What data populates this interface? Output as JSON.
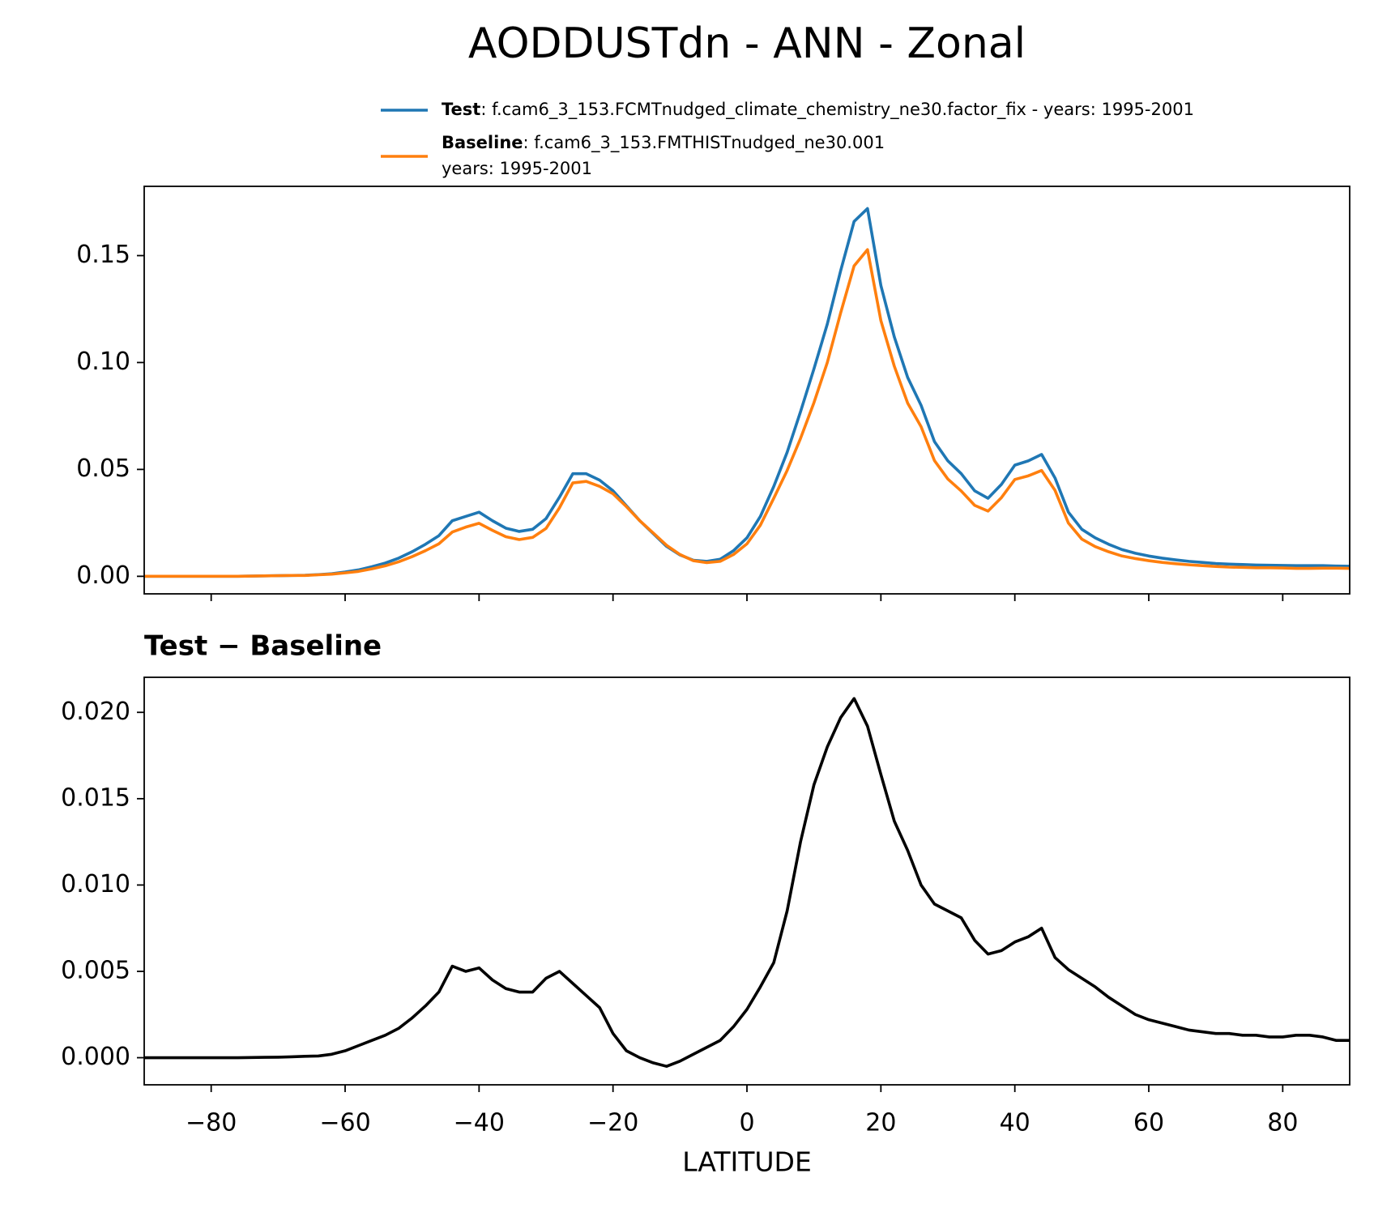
{
  "title": "AODDUSTdn - ANN - Zonal",
  "chart_data": [
    {
      "type": "line",
      "x": [
        -90,
        -88,
        -86,
        -84,
        -82,
        -80,
        -78,
        -76,
        -74,
        -72,
        -70,
        -68,
        -66,
        -64,
        -62,
        -60,
        -58,
        -56,
        -54,
        -52,
        -50,
        -48,
        -46,
        -44,
        -42,
        -40,
        -38,
        -36,
        -34,
        -32,
        -30,
        -28,
        -26,
        -24,
        -22,
        -20,
        -18,
        -16,
        -14,
        -12,
        -10,
        -8,
        -6,
        -4,
        -2,
        0,
        2,
        4,
        6,
        8,
        10,
        12,
        14,
        16,
        18,
        20,
        22,
        24,
        26,
        28,
        30,
        32,
        34,
        36,
        38,
        40,
        42,
        44,
        46,
        48,
        50,
        52,
        54,
        56,
        58,
        60,
        62,
        64,
        66,
        68,
        70,
        72,
        74,
        76,
        78,
        80,
        82,
        84,
        86,
        88,
        90
      ],
      "series": [
        {
          "name": "Test",
          "description": [
            ": f.cam6_3_153.FCMTnudged_climate_chemistry_ne30.factor_fix - years: 1995-2001"
          ],
          "color": "#1f77b4",
          "values": [
            0,
            0,
            0,
            0,
            0,
            0,
            0,
            0,
            0.0001,
            0.0002,
            0.0003,
            0.0004,
            0.0005,
            0.0008,
            0.0012,
            0.002,
            0.003,
            0.0045,
            0.0062,
            0.0085,
            0.0115,
            0.015,
            0.019,
            0.026,
            0.028,
            0.03,
            0.026,
            0.0225,
            0.021,
            0.022,
            0.027,
            0.037,
            0.048,
            0.048,
            0.045,
            0.04,
            0.033,
            0.026,
            0.02,
            0.014,
            0.01,
            0.0075,
            0.007,
            0.008,
            0.012,
            0.018,
            0.028,
            0.042,
            0.058,
            0.077,
            0.097,
            0.118,
            0.143,
            0.166,
            0.172,
            0.136,
            0.112,
            0.093,
            0.08,
            0.063,
            0.054,
            0.048,
            0.04,
            0.0365,
            0.043,
            0.052,
            0.054,
            0.057,
            0.046,
            0.03,
            0.022,
            0.018,
            0.015,
            0.0125,
            0.0108,
            0.0095,
            0.0085,
            0.0077,
            0.007,
            0.0065,
            0.006,
            0.0057,
            0.0055,
            0.0053,
            0.0052,
            0.0051,
            0.005,
            0.005,
            0.005,
            0.0048,
            0.0047
          ]
        },
        {
          "name": "Baseline",
          "description": [
            ": f.cam6_3_153.FMTHISTnudged_ne30.001",
            "years: 1995-2001"
          ],
          "color": "#ff7f0e",
          "values": [
            0,
            0,
            0,
            0,
            0,
            0,
            0,
            0,
            0.0001,
            0.0002,
            0.0003,
            0.0004,
            0.0004,
            0.0007,
            0.001,
            0.0016,
            0.0023,
            0.0035,
            0.0049,
            0.0068,
            0.0092,
            0.012,
            0.0152,
            0.0207,
            0.023,
            0.0248,
            0.0215,
            0.0185,
            0.0172,
            0.0182,
            0.0224,
            0.032,
            0.0437,
            0.0444,
            0.0421,
            0.0386,
            0.0326,
            0.026,
            0.0203,
            0.0145,
            0.0102,
            0.0073,
            0.0064,
            0.007,
            0.0102,
            0.0152,
            0.0239,
            0.0365,
            0.0495,
            0.0645,
            0.0812,
            0.1,
            0.1233,
            0.1452,
            0.1528,
            0.1196,
            0.0983,
            0.081,
            0.07,
            0.0541,
            0.0455,
            0.0399,
            0.0332,
            0.0305,
            0.0368,
            0.0453,
            0.047,
            0.0495,
            0.0402,
            0.0249,
            0.0174,
            0.0139,
            0.0115,
            0.0095,
            0.0083,
            0.0073,
            0.0065,
            0.0059,
            0.0054,
            0.005,
            0.0046,
            0.0043,
            0.0042,
            0.004,
            0.004,
            0.0039,
            0.0037,
            0.0037,
            0.0038,
            0.0038,
            0.0037
          ]
        }
      ],
      "xlim": [
        -90,
        90
      ],
      "xticks": [
        -80,
        -60,
        -40,
        -20,
        0,
        20,
        40,
        60,
        80
      ],
      "ylim": [
        -0.0082,
        0.1824
      ],
      "yticks": [
        {
          "value": 0,
          "label": "0.00"
        },
        {
          "value": 0.05,
          "label": "0.05"
        },
        {
          "value": 0.1,
          "label": "0.10"
        },
        {
          "value": 0.15,
          "label": "0.15"
        }
      ]
    },
    {
      "type": "line",
      "title": "Test − Baseline",
      "xlabel": "LATITUDE",
      "x": [
        -90,
        -88,
        -86,
        -84,
        -82,
        -80,
        -78,
        -76,
        -74,
        -72,
        -70,
        -68,
        -66,
        -64,
        -62,
        -60,
        -58,
        -56,
        -54,
        -52,
        -50,
        -48,
        -46,
        -44,
        -42,
        -40,
        -38,
        -36,
        -34,
        -32,
        -30,
        -28,
        -26,
        -24,
        -22,
        -20,
        -18,
        -16,
        -14,
        -12,
        -10,
        -8,
        -6,
        -4,
        -2,
        0,
        2,
        4,
        6,
        8,
        10,
        12,
        14,
        16,
        18,
        20,
        22,
        24,
        26,
        28,
        30,
        32,
        34,
        36,
        38,
        40,
        42,
        44,
        46,
        48,
        50,
        52,
        54,
        56,
        58,
        60,
        62,
        64,
        66,
        68,
        70,
        72,
        74,
        76,
        78,
        80,
        82,
        84,
        86,
        88,
        90
      ],
      "series": [
        {
          "color": "#000000",
          "values": [
            0,
            0,
            0,
            0,
            0,
            0,
            0,
            0,
            1e-05,
            2e-05,
            3e-05,
            5e-05,
            8e-05,
            0.0001,
            0.0002,
            0.0004,
            0.0007,
            0.001,
            0.0013,
            0.0017,
            0.0023,
            0.003,
            0.0038,
            0.0053,
            0.005,
            0.0052,
            0.0045,
            0.004,
            0.0038,
            0.0038,
            0.0046,
            0.005,
            0.0043,
            0.0036,
            0.0029,
            0.0014,
            0.0004,
            0,
            -0.0003,
            -0.0005,
            -0.0002,
            0.0002,
            0.0006,
            0.001,
            0.0018,
            0.0028,
            0.0041,
            0.0055,
            0.0085,
            0.0125,
            0.0158,
            0.018,
            0.0197,
            0.0208,
            0.0192,
            0.0164,
            0.0137,
            0.012,
            0.01,
            0.0089,
            0.0085,
            0.0081,
            0.0068,
            0.006,
            0.0062,
            0.0067,
            0.007,
            0.0075,
            0.0058,
            0.0051,
            0.0046,
            0.0041,
            0.0035,
            0.003,
            0.0025,
            0.0022,
            0.002,
            0.0018,
            0.0016,
            0.0015,
            0.0014,
            0.0014,
            0.0013,
            0.0013,
            0.0012,
            0.0012,
            0.0013,
            0.0013,
            0.0012,
            0.001,
            0.001
          ]
        }
      ],
      "xlim": [
        -90,
        90
      ],
      "xticks": [
        {
          "value": -80,
          "label": "−80"
        },
        {
          "value": -60,
          "label": "−60"
        },
        {
          "value": -40,
          "label": "−40"
        },
        {
          "value": -20,
          "label": "−20"
        },
        0,
        20,
        40,
        60,
        80
      ],
      "ylim": [
        -0.00157,
        0.02203
      ],
      "yticks": [
        {
          "value": 0,
          "label": "0.000"
        },
        {
          "value": 0.005,
          "label": "0.005"
        },
        {
          "value": 0.01,
          "label": "0.010"
        },
        {
          "value": 0.015,
          "label": "0.015"
        },
        {
          "value": 0.02,
          "label": "0.020"
        }
      ]
    }
  ]
}
